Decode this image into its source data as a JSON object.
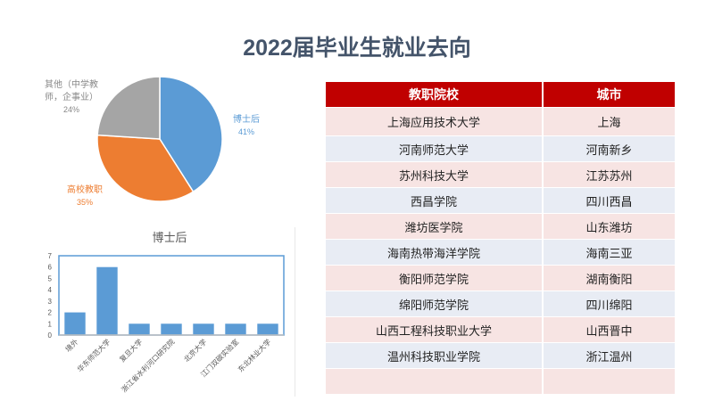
{
  "title": "2022届毕业生就业去向",
  "chart_data": [
    {
      "type": "pie",
      "title": "",
      "slices": [
        {
          "label": "博士后",
          "value": 41,
          "pct_label": "41%",
          "color": "#5b9bd5"
        },
        {
          "label": "高校教职",
          "value": 35,
          "pct_label": "35%",
          "color": "#ed7d31"
        },
        {
          "label": "其他（中学教师，企事业）",
          "label_lines": [
            "其他（中学教",
            "师，企事业）"
          ],
          "value": 24,
          "pct_label": "24%",
          "color": "#a5a5a5"
        }
      ]
    },
    {
      "type": "bar",
      "title": "博士后",
      "categories": [
        "境外",
        "华东师范大学",
        "复旦大学",
        "浙江省水利河口研究院",
        "北京大学",
        "江门双碳实验室",
        "东北林业大学"
      ],
      "values": [
        2,
        6,
        1,
        1,
        1,
        1,
        1
      ],
      "ylim": [
        0,
        7
      ],
      "yticks": [
        "0",
        "1",
        "2",
        "3",
        "4",
        "5",
        "6",
        "7"
      ],
      "color": "#5b9bd5",
      "xlabel": "",
      "ylabel": ""
    }
  ],
  "table": {
    "headers": [
      "教职院校",
      "城市"
    ],
    "header_color": "#c00000",
    "rows": [
      [
        "上海应用技术大学",
        "上海"
      ],
      [
        "河南师范大学",
        "河南新乡"
      ],
      [
        "苏州科技大学",
        "江苏苏州"
      ],
      [
        "西昌学院",
        "四川西昌"
      ],
      [
        "潍坊医学院",
        "山东潍坊"
      ],
      [
        "海南热带海洋学院",
        "海南三亚"
      ],
      [
        "衡阳师范学院",
        "湖南衡阳"
      ],
      [
        "绵阳师范学院",
        "四川绵阳"
      ],
      [
        "山西工程科技职业大学",
        "山西晋中"
      ],
      [
        "温州科技职业学院",
        "浙江温州"
      ],
      [
        "",
        ""
      ]
    ]
  }
}
